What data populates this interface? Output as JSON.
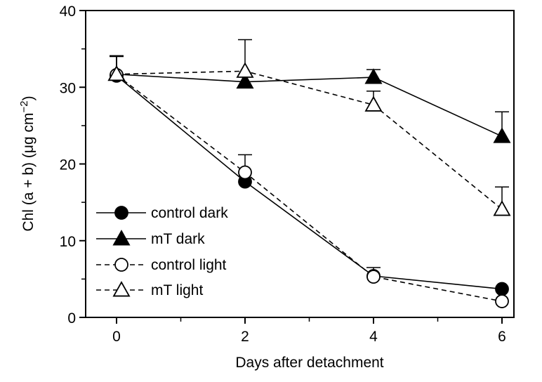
{
  "chart_data": {
    "type": "line",
    "xlabel": "Days after detachment",
    "ylabel": "Chl (a + b) (μg cm",
    "ylabel_unit_power": "−2",
    "ylabel_close": ")",
    "xlim": [
      -0.5,
      6.2
    ],
    "ylim": [
      0,
      40
    ],
    "x_ticks": [
      0,
      2,
      4,
      6
    ],
    "x_minor_ticks": [
      1,
      3,
      5
    ],
    "y_ticks": [
      0,
      10,
      20,
      30,
      40
    ],
    "y_minor_ticks": [
      5,
      15,
      25,
      35
    ],
    "legend_position": "lower-left",
    "series": [
      {
        "name": "control dark",
        "marker": "circle",
        "fill": "filled",
        "line": "solid",
        "x": [
          0,
          2,
          4,
          6
        ],
        "y": [
          31.5,
          17.7,
          5.4,
          3.7
        ],
        "err": [
          2.6,
          0,
          1.1,
          0
        ]
      },
      {
        "name": "mT dark",
        "marker": "triangle",
        "fill": "filled",
        "line": "solid",
        "x": [
          0,
          2,
          4,
          6
        ],
        "y": [
          31.7,
          30.7,
          31.3,
          23.6
        ],
        "err": [
          2.4,
          0,
          1.0,
          3.2
        ]
      },
      {
        "name": "control light",
        "marker": "circle",
        "fill": "open",
        "line": "dashed",
        "x": [
          0,
          2,
          4,
          6
        ],
        "y": [
          31.6,
          18.9,
          5.3,
          2.1
        ],
        "err": [
          2.4,
          2.3,
          0,
          0
        ]
      },
      {
        "name": "mT light",
        "marker": "triangle",
        "fill": "open",
        "line": "dashed",
        "x": [
          0,
          2,
          4,
          6
        ],
        "y": [
          31.7,
          32.1,
          27.7,
          14.1
        ],
        "err": [
          2.4,
          4.1,
          1.8,
          2.9
        ]
      }
    ]
  }
}
